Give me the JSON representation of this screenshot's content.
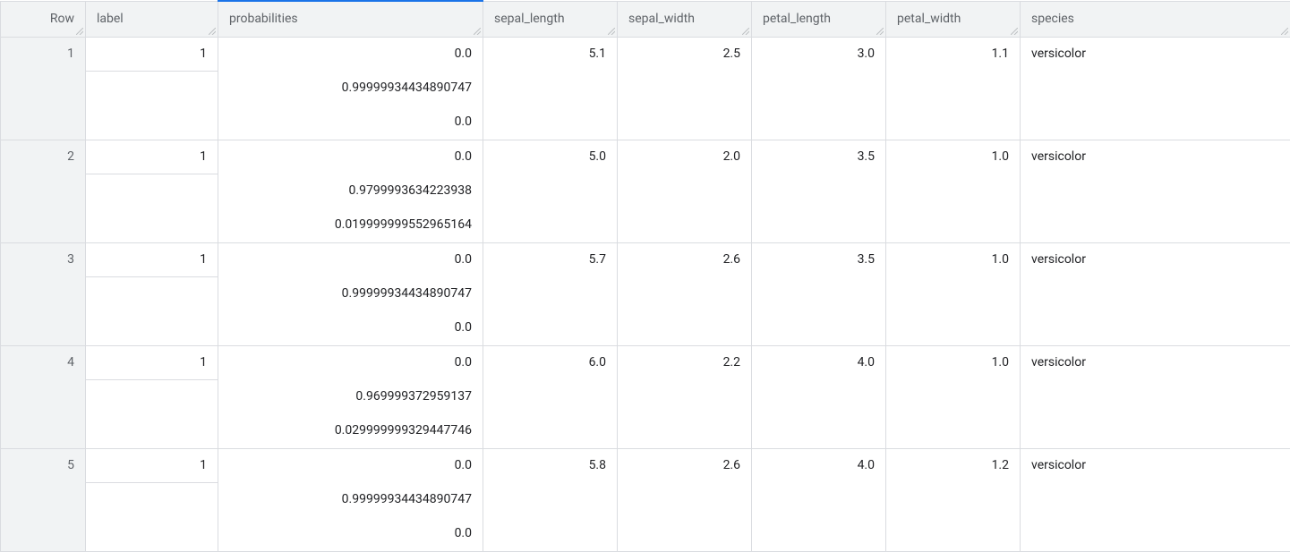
{
  "table": {
    "columns": {
      "row": "Row",
      "label": "label",
      "probabilities": "probabilities",
      "sepal_length": "sepal_length",
      "sepal_width": "sepal_width",
      "petal_length": "petal_length",
      "petal_width": "petal_width",
      "species": "species"
    },
    "column_widths": {
      "row": 95,
      "label": 148,
      "probabilities": 296,
      "sepal_length": 150,
      "sepal_width": 150,
      "petal_length": 150,
      "petal_width": 150,
      "species": 302
    },
    "active_column": "probabilities",
    "header_bg": "#f1f3f4",
    "border_color": "#dadce0",
    "active_border_color": "#1a73e8",
    "text_color": "#202124",
    "header_text_color": "#5f6368",
    "rows": [
      {
        "row": "1",
        "label": "1",
        "probabilities": [
          "0.0",
          "0.99999934434890747",
          "0.0"
        ],
        "sepal_length": "5.1",
        "sepal_width": "2.5",
        "petal_length": "3.0",
        "petal_width": "1.1",
        "species": "versicolor"
      },
      {
        "row": "2",
        "label": "1",
        "probabilities": [
          "0.0",
          "0.9799993634223938",
          "0.019999999552965164"
        ],
        "sepal_length": "5.0",
        "sepal_width": "2.0",
        "petal_length": "3.5",
        "petal_width": "1.0",
        "species": "versicolor"
      },
      {
        "row": "3",
        "label": "1",
        "probabilities": [
          "0.0",
          "0.99999934434890747",
          "0.0"
        ],
        "sepal_length": "5.7",
        "sepal_width": "2.6",
        "petal_length": "3.5",
        "petal_width": "1.0",
        "species": "versicolor"
      },
      {
        "row": "4",
        "label": "1",
        "probabilities": [
          "0.0",
          "0.969999372959137",
          "0.029999999329447746"
        ],
        "sepal_length": "6.0",
        "sepal_width": "2.2",
        "petal_length": "4.0",
        "petal_width": "1.0",
        "species": "versicolor"
      },
      {
        "row": "5",
        "label": "1",
        "probabilities": [
          "0.0",
          "0.99999934434890747",
          "0.0"
        ],
        "sepal_length": "5.8",
        "sepal_width": "2.6",
        "petal_length": "4.0",
        "petal_width": "1.2",
        "species": "versicolor"
      }
    ]
  }
}
